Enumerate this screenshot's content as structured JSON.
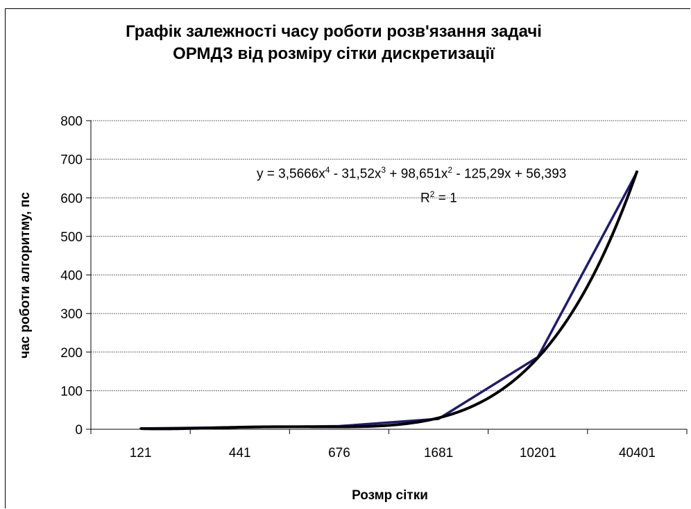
{
  "chart_data": {
    "type": "line",
    "title_lines": [
      "Графік залежності часу роботи розв'язання задачі",
      "ОРМДЗ від розміру сітки дискретизації"
    ],
    "xlabel": "Розмр сітки",
    "ylabel": "час роботи алгоритму, пс",
    "categories": [
      "121",
      "441",
      "676",
      "1681",
      "10201",
      "40401"
    ],
    "ylim": [
      0,
      800
    ],
    "yticks": [
      "0",
      "100",
      "200",
      "300",
      "400",
      "500",
      "600",
      "700",
      "800"
    ],
    "grid": true,
    "series": [
      {
        "values": [
          2,
          5,
          8,
          27,
          187,
          668
        ],
        "color": "#1f1a73"
      }
    ],
    "trendline": {
      "type": "polynomial",
      "order": 4,
      "color": "#000000",
      "equation_parts": {
        "p1": "y = 3,5666x",
        "e1": "4",
        "p2": " - 31,52x",
        "e2": "3",
        "p3": " + 98,651x",
        "e3": "2",
        "p4": " - 125,29x + 56,393"
      },
      "r2_parts": {
        "p1": "R",
        "e1": "2",
        "p2": " = 1"
      }
    }
  }
}
